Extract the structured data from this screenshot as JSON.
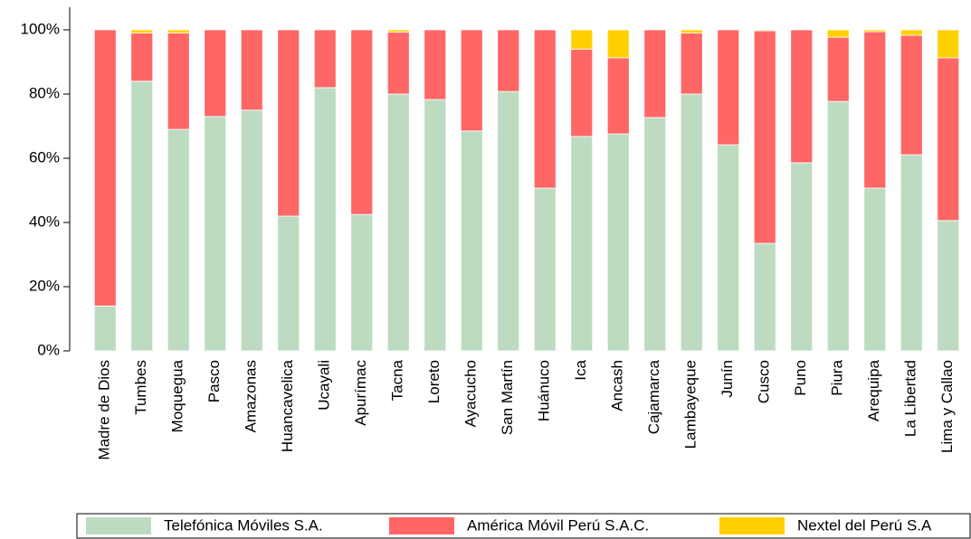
{
  "chart_data": {
    "type": "stacked_bar",
    "categories": [
      "Madre de Dios",
      "Tumbes",
      "Moquegua",
      "Pasco",
      "Amazonas",
      "Huancavelica",
      "Ucayali",
      "Apurímac",
      "Tacna",
      "Loreto",
      "Ayacucho",
      "San Martín",
      "Huánuco",
      "Ica",
      "Ancash",
      "Cajamarca",
      "Lambayeque",
      "Junín",
      "Cusco",
      "Puno",
      "Piura",
      "Arequipa",
      "La Libertad",
      "Lima y Callao"
    ],
    "series": [
      {
        "name": "Telefónica Móviles S.A.",
        "color": "#bddbc0",
        "values": [
          14,
          84,
          69,
          73,
          75,
          42,
          82,
          42.5,
          80,
          78.3,
          68.5,
          80.8,
          50.7,
          66.8,
          67.6,
          72.7,
          80,
          64.2,
          33.5,
          58.6,
          77.7,
          50.7,
          61.1,
          40.6
        ]
      },
      {
        "name": "América Móvil Perú S.A.C.",
        "color": "#ff6666",
        "values": [
          86,
          15,
          30,
          27,
          25,
          58,
          18,
          57.5,
          19.3,
          21.7,
          31.5,
          19.2,
          49.3,
          27.2,
          23.7,
          27.3,
          19,
          35.8,
          66.2,
          41.4,
          20,
          48.7,
          37.2,
          50.7
        ]
      },
      {
        "name": "Nextel del Perú S.A",
        "color": "#ffd000",
        "values": [
          0,
          1,
          1,
          0,
          0,
          0,
          0,
          0,
          0.7,
          0,
          0,
          0,
          0,
          6,
          8.7,
          0,
          1,
          0,
          0.3,
          0,
          2.3,
          0.6,
          1.7,
          8.7
        ]
      }
    ],
    "ylim": [
      0,
      100
    ],
    "yticks": [
      {
        "value": 0,
        "label": "0%"
      },
      {
        "value": 20,
        "label": "20%"
      },
      {
        "value": 40,
        "label": "40%"
      },
      {
        "value": 60,
        "label": "60%"
      },
      {
        "value": 80,
        "label": "80%"
      },
      {
        "value": 100,
        "label": "100%"
      }
    ]
  }
}
